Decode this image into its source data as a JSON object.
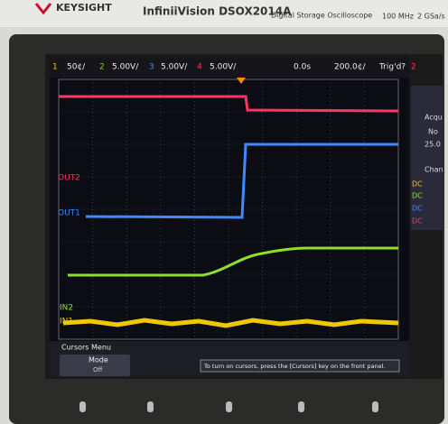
{
  "header": {
    "brand": "KEYSIGHT",
    "model": "InfiniiVision DSOX2014A",
    "description": "Digital Storage Oscilloscope",
    "bandwidth": "100 MHz",
    "sample_rate": "2 GSa/s"
  },
  "status_bar": {
    "channels": [
      {
        "number": "1",
        "scale": "50¢/"
      },
      {
        "number": "2",
        "scale": "5.00V/"
      },
      {
        "number": "3",
        "scale": "5.00V/"
      },
      {
        "number": "4",
        "scale": "5.00V/"
      }
    ],
    "time_offset": "0.0s",
    "time_scale": "200.0¢/",
    "trigger_status": "Trig'd?",
    "trigger_channel": "2"
  },
  "trace_labels": {
    "out2": "OUT2",
    "out1": "OUT1",
    "in2": "IN2",
    "in1": "IN1"
  },
  "side_panel": {
    "acquire": "Acqu",
    "mode": "No",
    "rate": "25.0",
    "channels": "Chan",
    "couplings": [
      "DC",
      "DC",
      "DC",
      "DC"
    ]
  },
  "cursor_menu": {
    "title": "Cursors Menu",
    "mode_label": "Mode",
    "mode_value": "Off",
    "message": "To turn on cursors, press the [Cursors] key on the front panel."
  }
}
